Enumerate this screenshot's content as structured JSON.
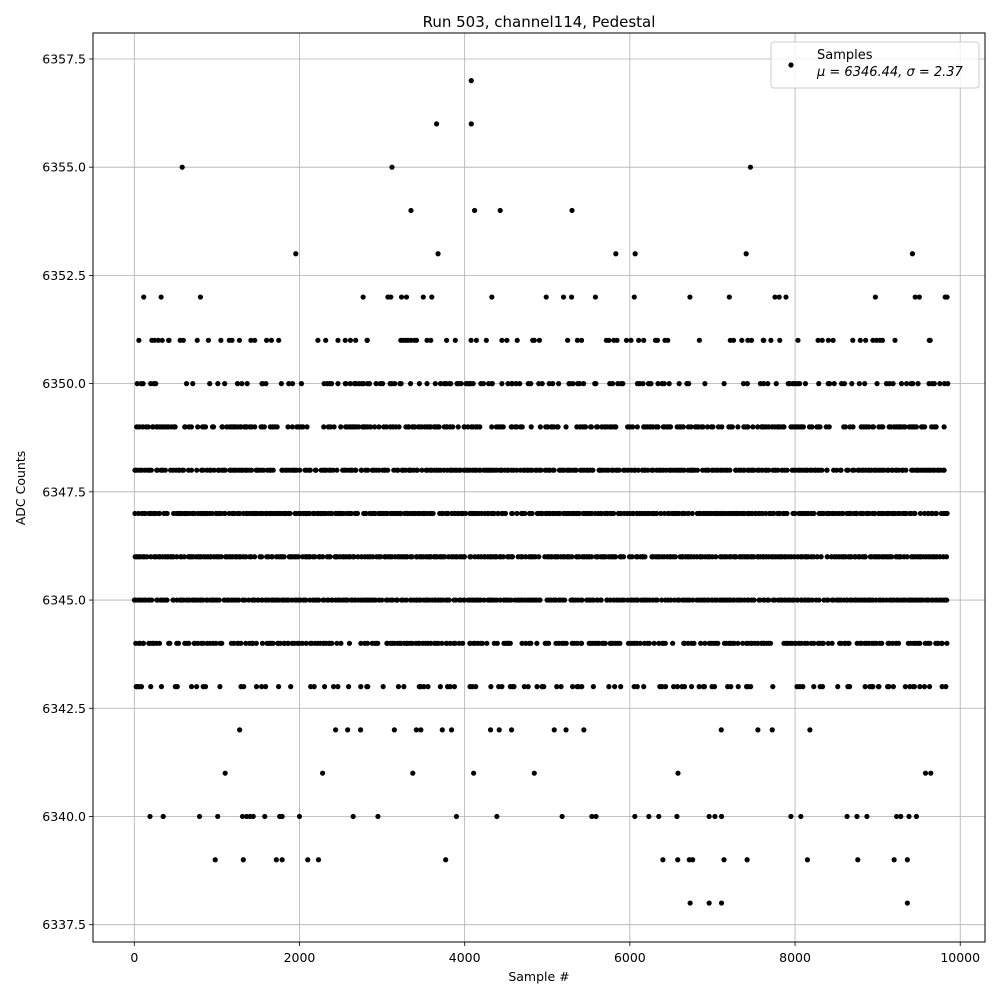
{
  "chart_data": {
    "type": "scatter",
    "title": "Run 503, channel114, Pedestal",
    "xlabel": "Sample #",
    "ylabel": "ADC Counts",
    "xlim": [
      -500,
      10300
    ],
    "ylim": [
      6337.1,
      6358.1
    ],
    "xticks": [
      0,
      2000,
      4000,
      6000,
      8000,
      10000
    ],
    "xtick_labels": [
      "0",
      "2000",
      "4000",
      "6000",
      "8000",
      "10000"
    ],
    "yticks": [
      6337.5,
      6340.0,
      6342.5,
      6345.0,
      6347.5,
      6350.0,
      6352.5,
      6355.0,
      6357.5
    ],
    "ytick_labels": [
      "6337.5",
      "6340.0",
      "6342.5",
      "6345.0",
      "6347.5",
      "6350.0",
      "6352.5",
      "6355.0",
      "6357.5"
    ],
    "grid": true,
    "legend_position": "top-right",
    "legend": {
      "label": "Samples",
      "stats_text": "μ = 6346.44, σ = 2.37"
    },
    "series": [
      {
        "name": "Samples",
        "color": "#000000",
        "x_range": [
          0,
          9860
        ],
        "sample_count": 9860,
        "dense_levels": [
          6341,
          6342,
          6343,
          6344,
          6345,
          6346,
          6347,
          6348,
          6349,
          6350,
          6351,
          6352,
          6353
        ],
        "points": [
          [
            580,
            6355
          ],
          [
            3120,
            6355
          ],
          [
            7460,
            6355
          ],
          [
            3660,
            6356
          ],
          [
            4080,
            6356
          ],
          [
            4080,
            6357
          ],
          [
            3350,
            6354
          ],
          [
            4120,
            6354
          ],
          [
            4430,
            6354
          ],
          [
            5300,
            6354
          ],
          [
            980,
            6339
          ],
          [
            1320,
            6339
          ],
          [
            1720,
            6339
          ],
          [
            1790,
            6339
          ],
          [
            2100,
            6339
          ],
          [
            2230,
            6339
          ],
          [
            3770,
            6339
          ],
          [
            6400,
            6339
          ],
          [
            6580,
            6339
          ],
          [
            6720,
            6339
          ],
          [
            6760,
            6339
          ],
          [
            7140,
            6339
          ],
          [
            7420,
            6339
          ],
          [
            8150,
            6339
          ],
          [
            8760,
            6339
          ],
          [
            9200,
            6339
          ],
          [
            9360,
            6339
          ],
          [
            6730,
            6338
          ],
          [
            6960,
            6338
          ],
          [
            7110,
            6338
          ],
          [
            9360,
            6338
          ],
          [
            190,
            6340
          ],
          [
            350,
            6340
          ],
          [
            790,
            6340
          ],
          [
            1010,
            6340
          ],
          [
            1310,
            6340
          ],
          [
            1360,
            6340
          ],
          [
            1400,
            6340
          ],
          [
            1440,
            6340
          ],
          [
            1580,
            6340
          ],
          [
            1760,
            6340
          ],
          [
            1790,
            6340
          ],
          [
            2000,
            6340
          ],
          [
            2650,
            6340
          ],
          [
            2950,
            6340
          ],
          [
            3900,
            6340
          ],
          [
            4390,
            6340
          ],
          [
            5180,
            6340
          ],
          [
            5540,
            6340
          ],
          [
            5590,
            6340
          ],
          [
            6060,
            6340
          ],
          [
            6230,
            6340
          ],
          [
            6350,
            6340
          ],
          [
            6570,
            6340
          ],
          [
            6960,
            6340
          ],
          [
            7030,
            6340
          ],
          [
            7110,
            6340
          ],
          [
            7950,
            6340
          ],
          [
            8070,
            6340
          ],
          [
            8630,
            6340
          ],
          [
            8750,
            6340
          ],
          [
            8870,
            6340
          ],
          [
            9230,
            6340
          ],
          [
            9280,
            6340
          ],
          [
            9380,
            6340
          ],
          [
            9470,
            6340
          ]
        ]
      }
    ]
  }
}
